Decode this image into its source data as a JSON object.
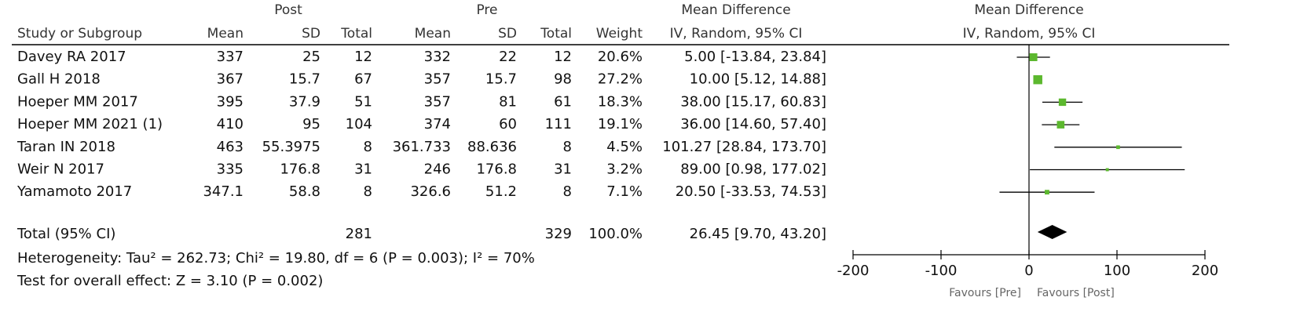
{
  "chart_data": {
    "type": "forest",
    "group_headers": {
      "post": "Post",
      "pre": "Pre",
      "md": "Mean Difference",
      "plot": "Mean Difference"
    },
    "columns": [
      "Study or Subgroup",
      "Mean",
      "SD",
      "Total",
      "Mean",
      "SD",
      "Total",
      "Weight",
      "IV, Random, 95% CI"
    ],
    "plot_subtitle": "IV, Random, 95% CI",
    "marker_color": "#5cb82e",
    "studies": [
      {
        "name": "Davey RA 2017",
        "post_mean": 337,
        "post_sd": 25,
        "post_total": 12,
        "pre_mean": 332,
        "pre_sd": 22,
        "pre_total": 12,
        "weight": 20.6,
        "weight_label": "20.6%",
        "md": 5.0,
        "lo": -13.84,
        "hi": 23.84,
        "ci_label": "5.00 [-13.84, 23.84]"
      },
      {
        "name": "Gall H 2018",
        "post_mean": 367,
        "post_sd": 15.7,
        "post_total": 67,
        "pre_mean": 357,
        "pre_sd": 15.7,
        "pre_total": 98,
        "weight": 27.2,
        "weight_label": "27.2%",
        "md": 10.0,
        "lo": 5.12,
        "hi": 14.88,
        "ci_label": "10.00 [5.12, 14.88]"
      },
      {
        "name": "Hoeper MM 2017",
        "post_mean": 395,
        "post_sd": 37.9,
        "post_total": 51,
        "pre_mean": 357,
        "pre_sd": 81,
        "pre_total": 61,
        "weight": 18.3,
        "weight_label": "18.3%",
        "md": 38.0,
        "lo": 15.17,
        "hi": 60.83,
        "ci_label": "38.00 [15.17, 60.83]"
      },
      {
        "name": "Hoeper MM 2021 (1)",
        "post_mean": 410,
        "post_sd": 95,
        "post_total": 104,
        "pre_mean": 374,
        "pre_sd": 60,
        "pre_total": 111,
        "weight": 19.1,
        "weight_label": "19.1%",
        "md": 36.0,
        "lo": 14.6,
        "hi": 57.4,
        "ci_label": "36.00 [14.60, 57.40]"
      },
      {
        "name": "Taran IN 2018",
        "post_mean": 463,
        "post_sd": 55.3975,
        "post_total": 8,
        "pre_mean": 361.733,
        "pre_sd": 88.636,
        "pre_total": 8,
        "weight": 4.5,
        "weight_label": "4.5%",
        "md": 101.27,
        "lo": 28.84,
        "hi": 173.7,
        "ci_label": "101.27 [28.84, 173.70]"
      },
      {
        "name": "Weir N 2017",
        "post_mean": 335,
        "post_sd": 176.8,
        "post_total": 31,
        "pre_mean": 246,
        "pre_sd": 176.8,
        "pre_total": 31,
        "weight": 3.2,
        "weight_label": "3.2%",
        "md": 89.0,
        "lo": 0.98,
        "hi": 177.02,
        "ci_label": "89.00 [0.98, 177.02]"
      },
      {
        "name": "Yamamoto 2017",
        "post_mean": 347.1,
        "post_sd": 58.8,
        "post_total": 8,
        "pre_mean": 326.6,
        "pre_sd": 51.2,
        "pre_total": 8,
        "weight": 7.1,
        "weight_label": "7.1%",
        "md": 20.5,
        "lo": -33.53,
        "hi": 74.53,
        "ci_label": "20.50 [-33.53, 74.53]"
      }
    ],
    "total": {
      "name": "Total (95% CI)",
      "post_total": 281,
      "pre_total": 329,
      "weight_label": "100.0%",
      "md": 26.45,
      "lo": 9.7,
      "hi": 43.2,
      "ci_label": "26.45 [9.70, 43.20]"
    },
    "heterogeneity": "Heterogeneity: Tau² = 262.73; Chi² = 19.80, df = 6 (P = 0.003); I² = 70%",
    "overall_effect": "Test for overall effect: Z = 3.10 (P = 0.002)",
    "xlim": [
      -200,
      200
    ],
    "xticks": [
      -200,
      -100,
      0,
      100,
      200
    ],
    "favours_left": "Favours [Pre]",
    "favours_right": "Favours [Post]"
  }
}
